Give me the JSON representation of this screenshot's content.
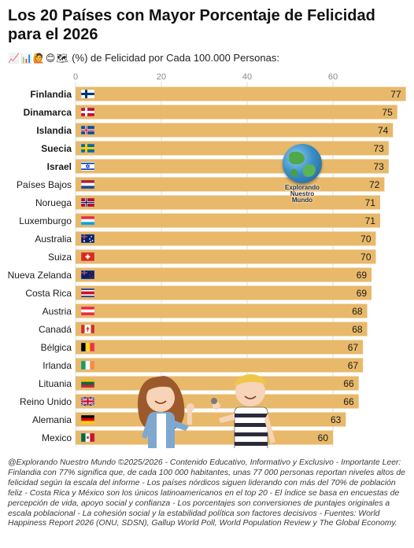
{
  "header": {
    "title_line1": "Los 20 Países con Mayor Porcentaje de Felicidad",
    "title_line2": "para el 2026",
    "subtitle_emojis": "📈📊🙋😊🗺",
    "subtitle": "(%) de Felicidad por Cada 100.000 Personas:"
  },
  "watermark": {
    "line1": "Explorando Nuestro",
    "line2": "Mundo"
  },
  "chart_data": {
    "type": "bar",
    "orientation": "horizontal",
    "title": "Los 20 Países con Mayor Porcentaje de Felicidad para el 2026",
    "subtitle": "(%) de Felicidad por Cada 100.000 Personas:",
    "x_ticks": [
      0,
      20,
      40,
      60
    ],
    "xlim": [
      0,
      77
    ],
    "grid": true,
    "bar_color": "#e8b96a",
    "data_labels": true,
    "bold_categories": [
      "Finlandia",
      "Dinamarca",
      "Islandia",
      "Suecia",
      "Israel"
    ],
    "categories": [
      "Finlandia",
      "Dinamarca",
      "Islandia",
      "Suecia",
      "Israel",
      "Países Bajos",
      "Noruega",
      "Luxemburgo",
      "Australia",
      "Suiza",
      "Nueva Zelanda",
      "Costa Rica",
      "Austria",
      "Canadá",
      "Bélgica",
      "Irlanda",
      "Lituania",
      "Reino Unido",
      "Alemania",
      "Mexico"
    ],
    "values": [
      77,
      75,
      74,
      73,
      73,
      72,
      71,
      71,
      70,
      70,
      69,
      69,
      68,
      68,
      67,
      67,
      66,
      66,
      63,
      60
    ],
    "flags": [
      "finland",
      "denmark",
      "iceland",
      "sweden",
      "israel",
      "netherlands",
      "norway",
      "luxembourg",
      "australia",
      "switzerland",
      "new-zealand",
      "costa-rica",
      "austria",
      "canada",
      "belgium",
      "ireland",
      "lithuania",
      "united-kingdom",
      "germany",
      "mexico"
    ]
  },
  "footer": {
    "text": "@Explorando Nuestro Mundo ©2025/2026 - Contenido Educativo, Informativo y Exclusivo - Importante Leer: Finlandia con 77% significa que, de cada 100 000 habitantes, unas 77 000 personas reportan niveles altos de felicidad según la escala del informe - Los países nórdicos siguen liderando con más del 70% de población feliz - Costa Rica y México son los únicos latinoamericanos en el top 20 - El índice se basa en encuestas de percepción de vida, apoyo social y confianza - Los porcentajes son conversiones de puntajes originales a escala poblacional - La cohesión social y la estabilidad política son factores decisivos - Fuentes: World Happiness Report 2026 (ONU, SDSN), Gallup World Poll, World Population Review y The Global Economy."
  }
}
